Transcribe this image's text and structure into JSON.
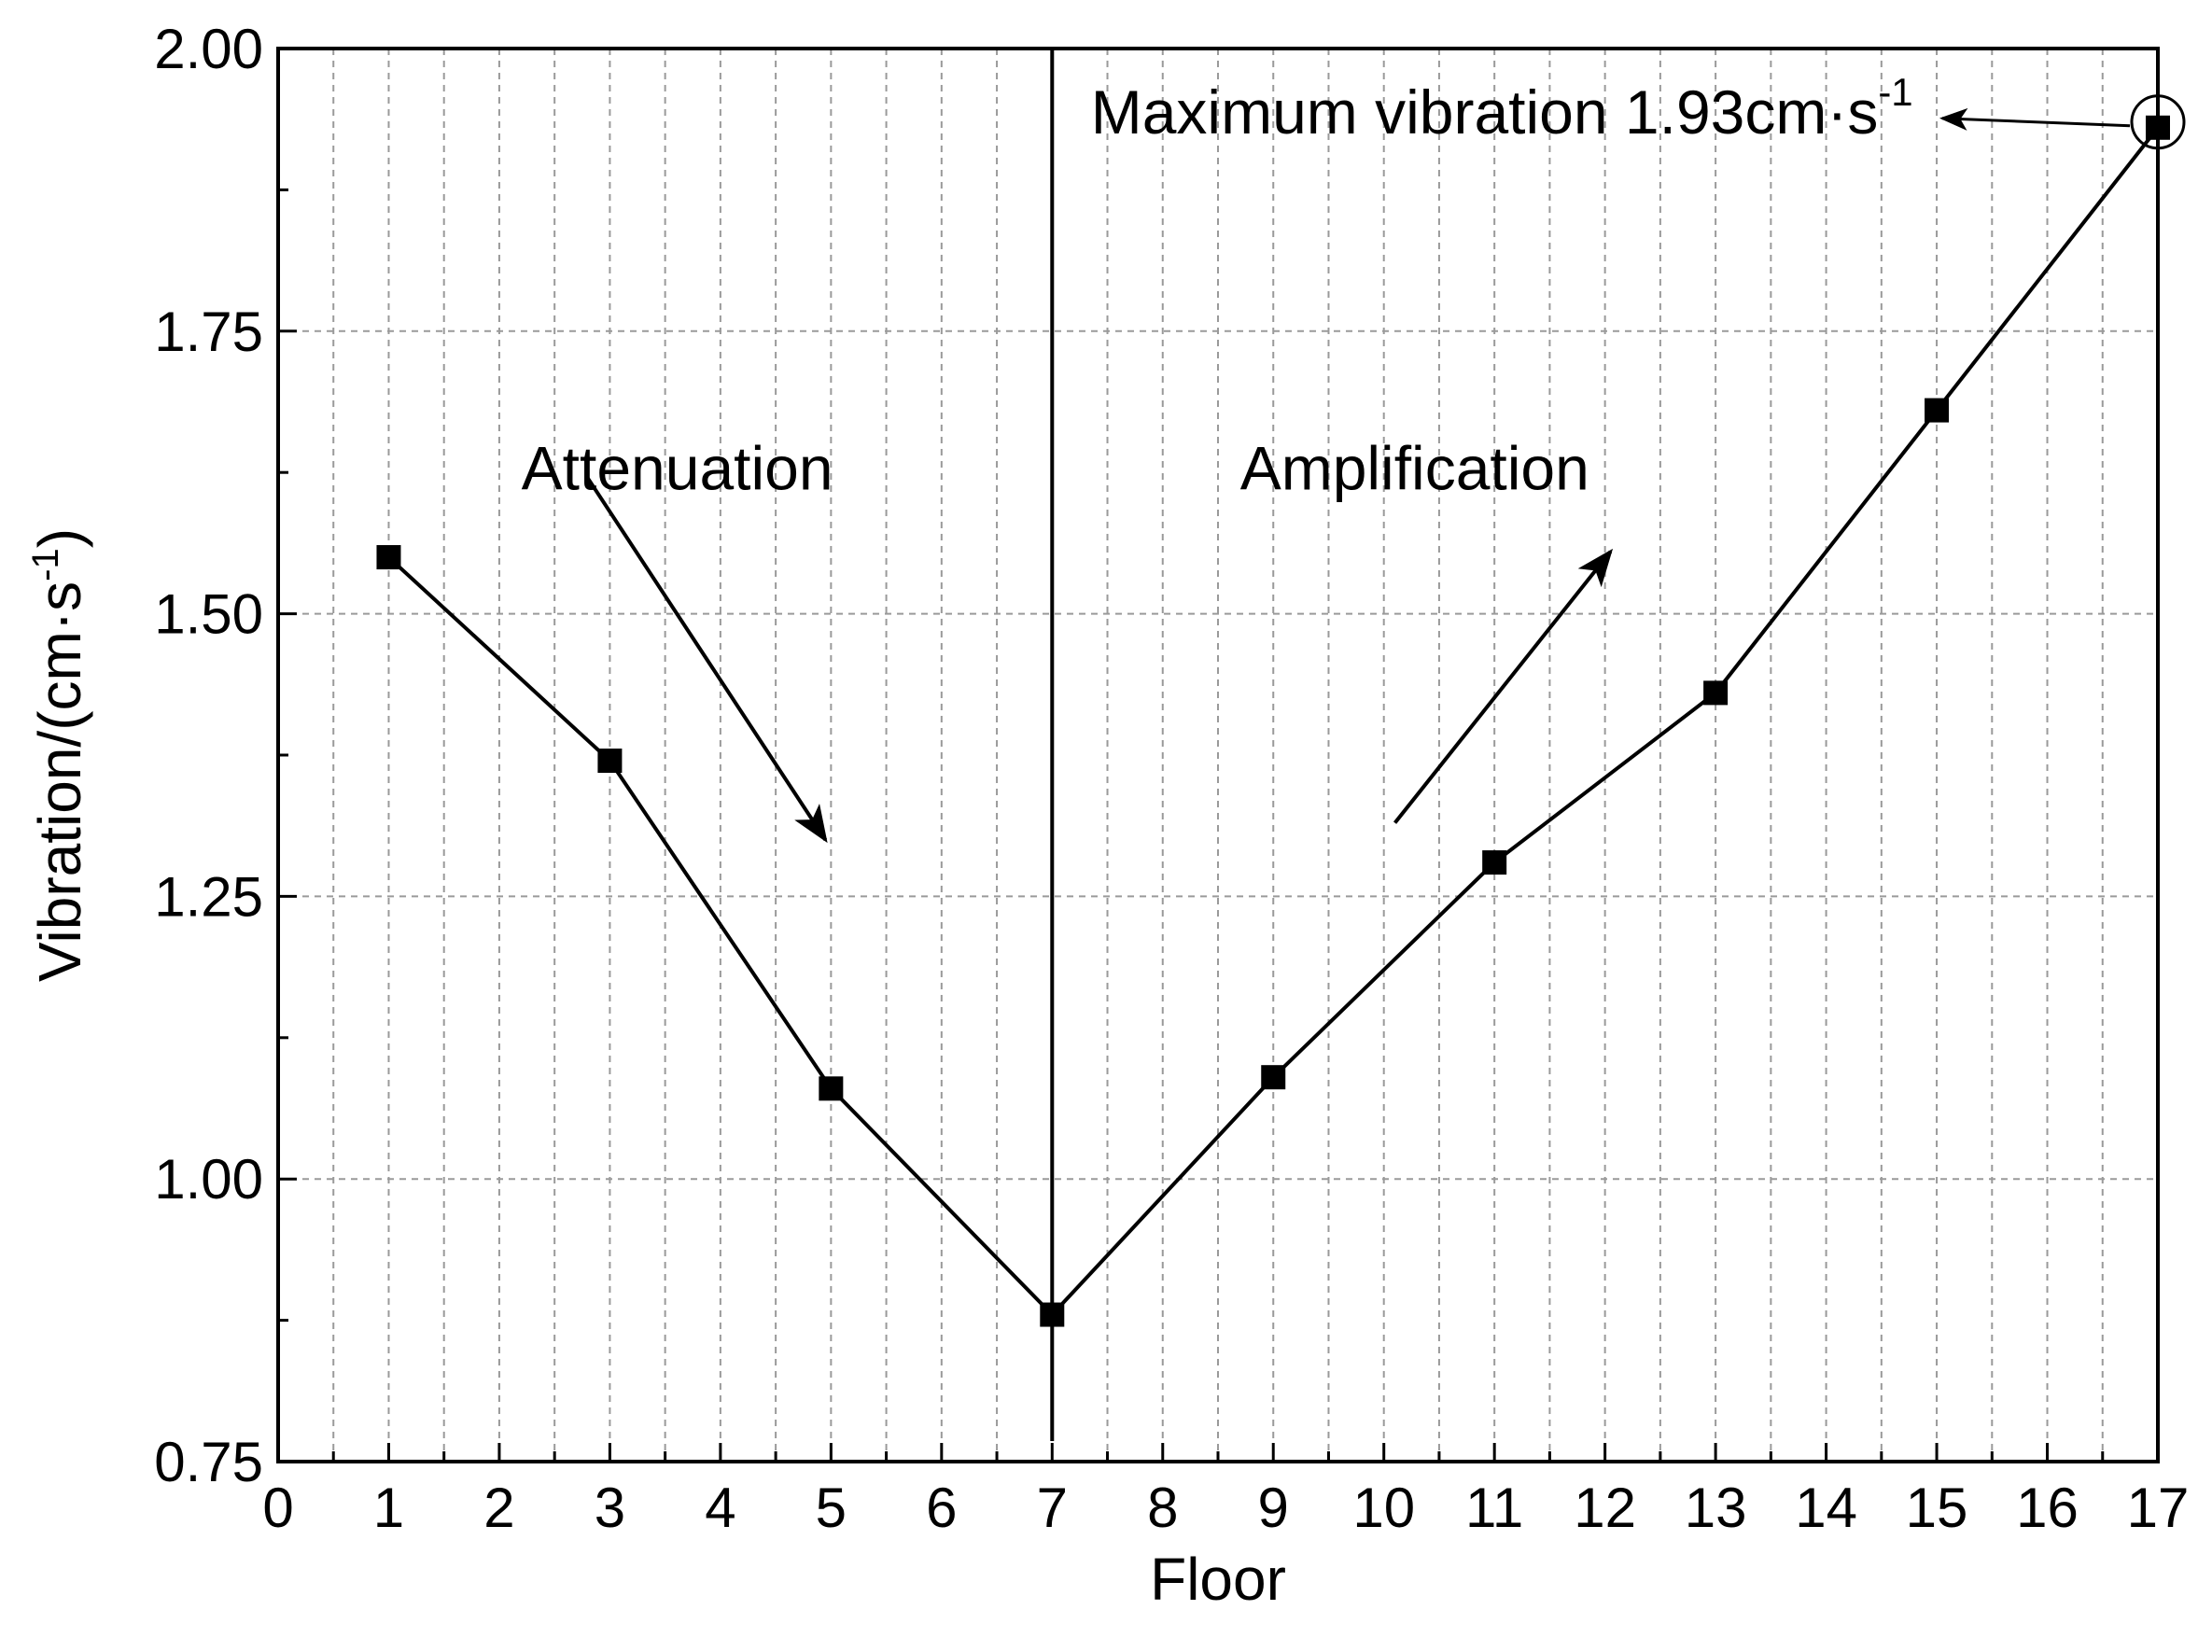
{
  "chart_data": {
    "type": "line",
    "title": "",
    "xlabel": "Floor",
    "ylabel_main": "Vibration/(cm·s",
    "ylabel_sup": "-1",
    "ylabel_close": ")",
    "xlim": [
      0,
      17
    ],
    "ylim": [
      0.75,
      2.0
    ],
    "xticks": [
      0,
      1,
      2,
      3,
      4,
      5,
      6,
      7,
      8,
      9,
      10,
      11,
      12,
      13,
      14,
      15,
      16,
      17
    ],
    "yticks": [
      0.75,
      1.0,
      1.25,
      1.5,
      1.75,
      2.0
    ],
    "ytick_labels": [
      "0.75",
      "1.00",
      "1.25",
      "1.50",
      "1.75",
      "2.00"
    ],
    "grid": true,
    "series": [
      {
        "name": "Vibration",
        "marker": "square",
        "x": [
          1,
          3,
          5,
          7,
          9,
          11,
          13,
          15,
          17
        ],
        "y": [
          1.55,
          1.37,
          1.08,
          0.88,
          1.09,
          1.28,
          1.43,
          1.68,
          1.93
        ]
      }
    ],
    "divider_x": 7,
    "annotations": {
      "attenuation": "Attenuation",
      "amplification": "Amplification",
      "max_text": "Maximum vibration 1.93cm·s",
      "max_sup": "-1",
      "max_point": {
        "x": 17,
        "y": 1.93
      },
      "attenuation_arrow": {
        "from": [
          2.8,
          1.62
        ],
        "to": [
          4.95,
          1.3
        ]
      },
      "amplification_arrow": {
        "from": [
          10.1,
          1.315
        ],
        "to": [
          12.05,
          1.555
        ]
      }
    }
  }
}
